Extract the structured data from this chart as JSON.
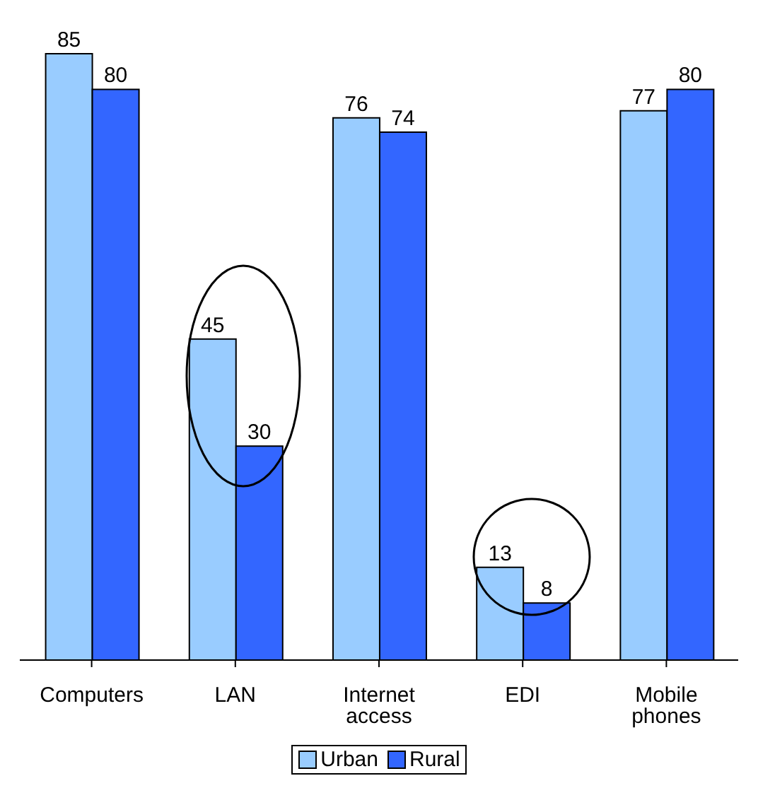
{
  "chart_data": {
    "type": "bar",
    "categories": [
      "Computers",
      "LAN",
      "Internet access",
      "EDI",
      "Mobile phones"
    ],
    "series": [
      {
        "name": "Urban",
        "color": "#99ccff",
        "values": [
          85,
          45,
          76,
          13,
          77
        ]
      },
      {
        "name": "Rural",
        "color": "#3366ff",
        "values": [
          80,
          30,
          74,
          8,
          80
        ]
      }
    ],
    "data_labels": true,
    "legend": "bottom"
  }
}
